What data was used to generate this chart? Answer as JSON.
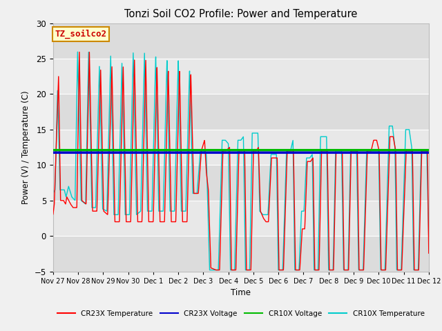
{
  "title": "Tonzi Soil CO2 Profile: Power and Temperature",
  "xlabel": "Time",
  "ylabel": "Power (V) / Temperature (C)",
  "ylim": [
    -5,
    30
  ],
  "yticks": [
    -5,
    0,
    5,
    10,
    15,
    20,
    25,
    30
  ],
  "annotation_text": "TZ_soilco2",
  "annotation_bg": "#ffffcc",
  "annotation_border": "#cc8800",
  "cr23x_voltage_value": 11.75,
  "cr10x_voltage_value": 12.1,
  "voltage_lw": 2.5,
  "temp_lw": 1.0,
  "x_tick_labels": [
    "Nov 27",
    "Nov 28",
    "Nov 29",
    "Nov 30",
    "Dec 1",
    "Dec 2",
    "Dec 3",
    "Dec 4",
    "Dec 5",
    "Dec 6",
    "Dec 7",
    "Dec 8",
    "Dec 9",
    "Dec 10",
    "Dec 11",
    "Dec 12"
  ],
  "cr23x_points": [
    [
      0.0,
      3.0
    ],
    [
      0.05,
      4.5
    ],
    [
      0.22,
      22.5
    ],
    [
      0.3,
      5.0
    ],
    [
      0.42,
      5.0
    ],
    [
      0.5,
      4.5
    ],
    [
      0.55,
      5.5
    ],
    [
      0.7,
      4.5
    ],
    [
      0.8,
      4.0
    ],
    [
      0.95,
      4.0
    ],
    [
      1.05,
      26.0
    ],
    [
      1.15,
      5.0
    ],
    [
      1.32,
      4.5
    ],
    [
      1.45,
      26.0
    ],
    [
      1.58,
      3.5
    ],
    [
      1.75,
      3.5
    ],
    [
      1.9,
      23.5
    ],
    [
      2.02,
      3.5
    ],
    [
      2.18,
      3.0
    ],
    [
      2.35,
      24.0
    ],
    [
      2.47,
      2.0
    ],
    [
      2.65,
      2.0
    ],
    [
      2.8,
      24.0
    ],
    [
      2.92,
      2.0
    ],
    [
      3.1,
      2.0
    ],
    [
      3.25,
      25.0
    ],
    [
      3.38,
      2.0
    ],
    [
      3.55,
      2.0
    ],
    [
      3.7,
      25.0
    ],
    [
      3.82,
      2.0
    ],
    [
      4.0,
      2.0
    ],
    [
      4.15,
      24.0
    ],
    [
      4.27,
      2.0
    ],
    [
      4.45,
      2.0
    ],
    [
      4.6,
      23.5
    ],
    [
      4.72,
      2.0
    ],
    [
      4.9,
      2.0
    ],
    [
      5.05,
      23.5
    ],
    [
      5.17,
      2.0
    ],
    [
      5.35,
      2.0
    ],
    [
      5.5,
      23.0
    ],
    [
      5.62,
      6.0
    ],
    [
      5.8,
      6.0
    ],
    [
      5.92,
      12.0
    ],
    [
      6.05,
      13.5
    ],
    [
      6.12,
      9.0
    ],
    [
      6.2,
      6.5
    ],
    [
      6.3,
      -4.5
    ],
    [
      6.5,
      -4.8
    ],
    [
      6.65,
      -4.8
    ],
    [
      6.78,
      12.0
    ],
    [
      6.9,
      12.0
    ],
    [
      7.05,
      12.5
    ],
    [
      7.12,
      -4.8
    ],
    [
      7.3,
      -4.8
    ],
    [
      7.42,
      12.0
    ],
    [
      7.55,
      12.0
    ],
    [
      7.65,
      12.2
    ],
    [
      7.72,
      -4.8
    ],
    [
      7.9,
      -4.8
    ],
    [
      8.0,
      12.0
    ],
    [
      8.12,
      12.0
    ],
    [
      8.2,
      12.5
    ],
    [
      8.28,
      3.5
    ],
    [
      8.4,
      2.5
    ],
    [
      8.5,
      2.0
    ],
    [
      8.6,
      2.0
    ],
    [
      8.72,
      11.0
    ],
    [
      8.85,
      11.0
    ],
    [
      8.95,
      11.0
    ],
    [
      9.02,
      -4.8
    ],
    [
      9.2,
      -4.8
    ],
    [
      9.35,
      12.0
    ],
    [
      9.5,
      12.0
    ],
    [
      9.6,
      12.0
    ],
    [
      9.68,
      -4.8
    ],
    [
      9.85,
      -4.8
    ],
    [
      9.95,
      1.0
    ],
    [
      10.05,
      1.0
    ],
    [
      10.15,
      10.5
    ],
    [
      10.28,
      10.5
    ],
    [
      10.38,
      11.0
    ],
    [
      10.45,
      -4.8
    ],
    [
      10.62,
      -4.8
    ],
    [
      10.72,
      12.0
    ],
    [
      10.85,
      12.0
    ],
    [
      10.95,
      12.0
    ],
    [
      11.03,
      -4.8
    ],
    [
      11.2,
      -4.8
    ],
    [
      11.3,
      11.8
    ],
    [
      11.45,
      11.8
    ],
    [
      11.55,
      11.8
    ],
    [
      11.62,
      -4.8
    ],
    [
      11.8,
      -4.8
    ],
    [
      11.9,
      12.0
    ],
    [
      12.05,
      12.0
    ],
    [
      12.15,
      12.0
    ],
    [
      12.22,
      -4.8
    ],
    [
      12.4,
      -4.8
    ],
    [
      12.55,
      12.0
    ],
    [
      12.7,
      12.0
    ],
    [
      12.8,
      13.5
    ],
    [
      12.92,
      13.5
    ],
    [
      13.02,
      12.0
    ],
    [
      13.1,
      -4.8
    ],
    [
      13.28,
      -4.8
    ],
    [
      13.45,
      14.0
    ],
    [
      13.58,
      14.0
    ],
    [
      13.68,
      12.0
    ],
    [
      13.75,
      -4.8
    ],
    [
      13.92,
      -4.8
    ],
    [
      14.1,
      12.0
    ],
    [
      14.25,
      12.0
    ],
    [
      14.35,
      12.0
    ],
    [
      14.42,
      -4.8
    ],
    [
      14.6,
      -4.8
    ],
    [
      14.72,
      12.0
    ],
    [
      14.85,
      12.0
    ],
    [
      14.95,
      12.0
    ],
    [
      15.0,
      -2.5
    ]
  ],
  "cr10x_points": [
    [
      0.0,
      6.0
    ],
    [
      0.08,
      6.5
    ],
    [
      0.18,
      20.5
    ],
    [
      0.28,
      6.5
    ],
    [
      0.45,
      6.5
    ],
    [
      0.52,
      5.5
    ],
    [
      0.62,
      7.0
    ],
    [
      0.75,
      5.5
    ],
    [
      0.88,
      5.0
    ],
    [
      0.98,
      26.0
    ],
    [
      1.12,
      5.0
    ],
    [
      1.3,
      4.5
    ],
    [
      1.42,
      26.0
    ],
    [
      1.55,
      4.0
    ],
    [
      1.7,
      4.0
    ],
    [
      1.85,
      24.0
    ],
    [
      1.98,
      3.8
    ],
    [
      2.15,
      3.5
    ],
    [
      2.3,
      25.5
    ],
    [
      2.43,
      3.0
    ],
    [
      2.6,
      3.0
    ],
    [
      2.75,
      24.5
    ],
    [
      2.88,
      3.0
    ],
    [
      3.05,
      3.0
    ],
    [
      3.2,
      26.0
    ],
    [
      3.33,
      3.0
    ],
    [
      3.5,
      3.5
    ],
    [
      3.65,
      26.0
    ],
    [
      3.77,
      3.5
    ],
    [
      3.95,
      3.5
    ],
    [
      4.1,
      25.5
    ],
    [
      4.22,
      3.5
    ],
    [
      4.4,
      3.5
    ],
    [
      4.55,
      25.0
    ],
    [
      4.67,
      3.5
    ],
    [
      4.85,
      3.5
    ],
    [
      5.0,
      25.0
    ],
    [
      5.12,
      3.5
    ],
    [
      5.3,
      3.5
    ],
    [
      5.45,
      23.5
    ],
    [
      5.58,
      6.0
    ],
    [
      5.75,
      6.0
    ],
    [
      5.88,
      12.0
    ],
    [
      6.02,
      12.0
    ],
    [
      6.12,
      11.5
    ],
    [
      6.25,
      -4.8
    ],
    [
      6.45,
      -4.8
    ],
    [
      6.6,
      -4.8
    ],
    [
      6.75,
      13.5
    ],
    [
      6.88,
      13.5
    ],
    [
      7.0,
      13.0
    ],
    [
      7.08,
      -4.8
    ],
    [
      7.25,
      -4.8
    ],
    [
      7.38,
      13.5
    ],
    [
      7.5,
      13.5
    ],
    [
      7.6,
      14.0
    ],
    [
      7.68,
      -4.8
    ],
    [
      7.85,
      -4.8
    ],
    [
      7.95,
      14.5
    ],
    [
      8.08,
      14.5
    ],
    [
      8.18,
      14.5
    ],
    [
      8.25,
      3.5
    ],
    [
      8.38,
      3.0
    ],
    [
      8.48,
      3.0
    ],
    [
      8.58,
      3.0
    ],
    [
      8.7,
      11.5
    ],
    [
      8.82,
      11.5
    ],
    [
      8.92,
      11.5
    ],
    [
      8.99,
      -4.8
    ],
    [
      9.17,
      -4.8
    ],
    [
      9.32,
      12.0
    ],
    [
      9.48,
      12.0
    ],
    [
      9.58,
      13.5
    ],
    [
      9.65,
      -4.8
    ],
    [
      9.82,
      -4.8
    ],
    [
      9.92,
      3.5
    ],
    [
      10.02,
      3.5
    ],
    [
      10.12,
      11.0
    ],
    [
      10.25,
      11.0
    ],
    [
      10.35,
      11.5
    ],
    [
      10.42,
      -4.8
    ],
    [
      10.58,
      -4.8
    ],
    [
      10.68,
      14.0
    ],
    [
      10.82,
      14.0
    ],
    [
      10.92,
      14.0
    ],
    [
      11.0,
      -4.8
    ],
    [
      11.18,
      -4.8
    ],
    [
      11.28,
      12.0
    ],
    [
      11.42,
      12.0
    ],
    [
      11.52,
      12.0
    ],
    [
      11.6,
      -4.8
    ],
    [
      11.78,
      -4.8
    ],
    [
      11.88,
      12.0
    ],
    [
      12.02,
      12.0
    ],
    [
      12.12,
      12.0
    ],
    [
      12.2,
      -4.8
    ],
    [
      12.38,
      -4.8
    ],
    [
      12.52,
      12.0
    ],
    [
      12.68,
      12.0
    ],
    [
      12.78,
      12.0
    ],
    [
      12.9,
      12.0
    ],
    [
      13.0,
      12.0
    ],
    [
      13.08,
      -4.8
    ],
    [
      13.25,
      -4.8
    ],
    [
      13.42,
      15.5
    ],
    [
      13.55,
      15.5
    ],
    [
      13.65,
      12.5
    ],
    [
      13.72,
      -4.8
    ],
    [
      13.9,
      -4.8
    ],
    [
      14.08,
      15.0
    ],
    [
      14.22,
      15.0
    ],
    [
      14.32,
      12.5
    ],
    [
      14.4,
      -4.8
    ],
    [
      14.58,
      -4.8
    ],
    [
      14.7,
      12.0
    ],
    [
      14.82,
      12.0
    ],
    [
      14.92,
      12.0
    ],
    [
      15.0,
      -0.5
    ]
  ]
}
